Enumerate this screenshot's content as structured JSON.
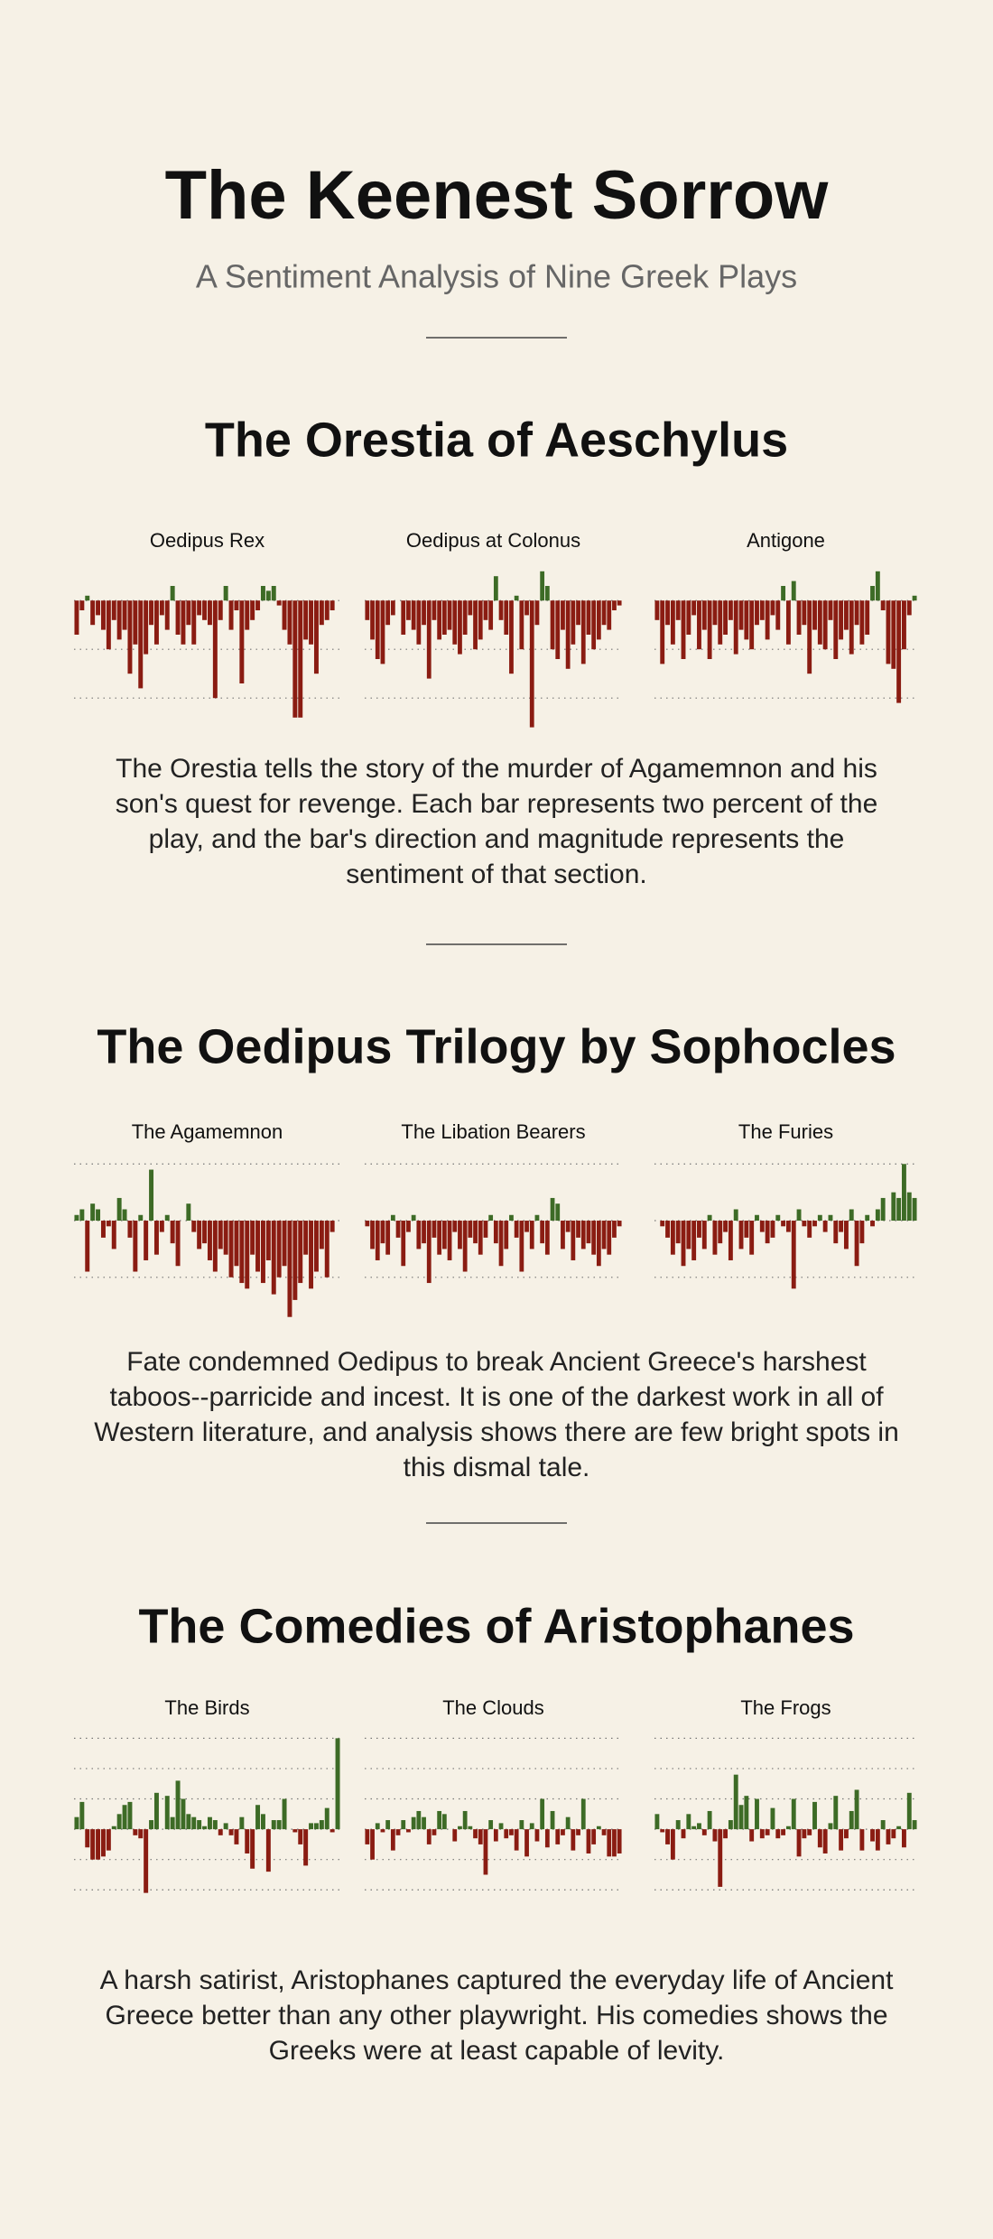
{
  "header": {
    "title": "The Keenest Sorrow",
    "subtitle": "A Sentiment Analysis of Nine Greek Plays"
  },
  "sections": [
    {
      "heading": "The Orestia of Aeschylus",
      "description": "The Orestia tells the story of the murder of Agamemnon and his son's quest for revenge. Each bar represents two percent of the play, and the bar's direction and magnitude represents the sentiment of that section."
    },
    {
      "heading": "The Oedipus Trilogy by Sophocles",
      "description": "Fate condemned Oedipus to break Ancient Greece's harshest taboos--parricide and incest. It is one of the darkest work in all of Western literature, and analysis shows there are few bright spots in this dismal tale."
    },
    {
      "heading": "The Comedies of Aristophanes",
      "description": "A harsh satirist, Aristophanes captured the everyday life of Ancient Greece better than any other playwright. His comedies shows the Greeks were at least capable of levity."
    }
  ],
  "chart_data": [
    {
      "type": "bar",
      "title": "Oedipus Rex",
      "ylim": [
        -2.7,
        0.8
      ],
      "yticks": [
        -2,
        -1,
        0
      ],
      "grid": true,
      "colors": {
        "positive": "#3d6b26",
        "negative": "#8a1c12"
      },
      "values": [
        -0.7,
        -0.2,
        0.1,
        -0.5,
        -0.3,
        -0.6,
        -1.0,
        -0.4,
        -0.8,
        -0.6,
        -1.5,
        -0.9,
        -1.8,
        -1.1,
        -0.5,
        -0.9,
        -0.3,
        -0.6,
        0.3,
        -0.7,
        -0.9,
        -0.5,
        -0.9,
        -0.3,
        -0.4,
        -0.5,
        -2.0,
        -0.4,
        0.3,
        -0.6,
        -0.2,
        -1.7,
        -0.6,
        -0.4,
        -0.2,
        0.3,
        0.2,
        0.3,
        -0.1,
        -0.6,
        -0.9,
        -2.4,
        -2.4,
        -0.8,
        -0.9,
        -1.5,
        -0.5,
        -0.4,
        -0.2,
        0
      ]
    },
    {
      "type": "bar",
      "title": "Oedipus at Colonus",
      "ylim": [
        -2.7,
        0.8
      ],
      "yticks": [
        -2,
        -1,
        0
      ],
      "grid": true,
      "colors": {
        "positive": "#3d6b26",
        "negative": "#8a1c12"
      },
      "values": [
        -0.4,
        -0.8,
        -1.2,
        -1.3,
        -0.5,
        -0.3,
        0,
        -0.7,
        -0.4,
        -0.6,
        -0.9,
        -0.5,
        -1.6,
        -0.4,
        -0.8,
        -0.7,
        -0.6,
        -0.9,
        -1.1,
        -0.7,
        -0.3,
        -1.0,
        -0.8,
        -0.4,
        -0.6,
        0.5,
        -0.4,
        -0.7,
        -1.5,
        0.1,
        -1.0,
        -0.3,
        -2.6,
        -0.5,
        0.6,
        0.3,
        -1.0,
        -1.2,
        -0.6,
        -1.4,
        -0.9,
        -0.5,
        -1.3,
        -0.7,
        -1.0,
        -0.8,
        -0.5,
        -0.6,
        -0.2,
        -0.1
      ]
    },
    {
      "type": "bar",
      "title": "Antigone",
      "ylim": [
        -2.7,
        0.8
      ],
      "yticks": [
        -2,
        -1,
        0
      ],
      "grid": true,
      "colors": {
        "positive": "#3d6b26",
        "negative": "#8a1c12"
      },
      "values": [
        -0.4,
        -1.3,
        -0.5,
        -0.9,
        -0.4,
        -1.2,
        -0.7,
        -0.3,
        -1.0,
        -0.6,
        -1.2,
        -0.5,
        -0.9,
        -0.7,
        -0.4,
        -1.1,
        -0.6,
        -0.8,
        -1.0,
        -0.5,
        -0.4,
        -0.8,
        -0.3,
        -0.6,
        0.3,
        -0.9,
        0.4,
        -0.7,
        -0.5,
        -1.5,
        -0.6,
        -0.9,
        -1.0,
        -0.4,
        -1.2,
        -0.8,
        -0.6,
        -1.1,
        -0.5,
        -0.9,
        -0.7,
        0.3,
        0.6,
        -0.2,
        -1.3,
        -1.4,
        -2.1,
        -1.0,
        -0.3,
        0.1
      ]
    },
    {
      "type": "bar",
      "title": "The Agamemnon",
      "ylim": [
        -1.8,
        1.1
      ],
      "yticks": [
        -1,
        0,
        1
      ],
      "grid": true,
      "colors": {
        "positive": "#3d6b26",
        "negative": "#8a1c12"
      },
      "values": [
        0.1,
        0.2,
        -0.9,
        0.3,
        0.2,
        -0.3,
        -0.1,
        -0.5,
        0.4,
        0.2,
        -0.3,
        -0.9,
        0.1,
        -0.7,
        0.9,
        -0.6,
        -0.2,
        0.1,
        -0.4,
        -0.8,
        0,
        0.3,
        -0.2,
        -0.5,
        -0.4,
        -0.7,
        -0.9,
        -0.5,
        -0.6,
        -1.0,
        -0.8,
        -1.1,
        -1.2,
        -0.6,
        -0.9,
        -1.1,
        -0.7,
        -1.3,
        -1.0,
        -0.8,
        -1.7,
        -1.4,
        -1.1,
        -0.6,
        -1.2,
        -0.9,
        -0.5,
        -1.0,
        -0.2,
        0
      ]
    },
    {
      "type": "bar",
      "title": "The Libation Bearers",
      "ylim": [
        -1.8,
        1.1
      ],
      "yticks": [
        -1,
        0,
        1
      ],
      "grid": true,
      "colors": {
        "positive": "#3d6b26",
        "negative": "#8a1c12"
      },
      "values": [
        -0.1,
        -0.5,
        -0.7,
        -0.4,
        -0.6,
        0.1,
        -0.3,
        -0.8,
        -0.2,
        0.1,
        -0.5,
        -0.4,
        -1.1,
        -0.3,
        -0.6,
        -0.5,
        -0.7,
        -0.2,
        -0.5,
        -0.9,
        -0.3,
        -0.4,
        -0.6,
        -0.3,
        0.1,
        -0.4,
        -0.8,
        -0.5,
        0.1,
        -0.3,
        -0.9,
        -0.2,
        -0.5,
        0.1,
        -0.4,
        -0.6,
        0.4,
        0.3,
        -0.5,
        -0.2,
        -0.7,
        -0.3,
        -0.5,
        -0.4,
        -0.6,
        -0.8,
        -0.5,
        -0.6,
        -0.3,
        -0.1
      ]
    },
    {
      "type": "bar",
      "title": "The Furies",
      "ylim": [
        -1.8,
        1.1
      ],
      "yticks": [
        -1,
        0,
        1
      ],
      "grid": true,
      "colors": {
        "positive": "#3d6b26",
        "negative": "#8a1c12"
      },
      "values": [
        0,
        -0.1,
        -0.3,
        -0.6,
        -0.4,
        -0.8,
        -0.5,
        -0.7,
        -0.3,
        -0.5,
        0.1,
        -0.6,
        -0.4,
        -0.2,
        -0.7,
        0.2,
        -0.5,
        -0.3,
        -0.6,
        0.1,
        -0.2,
        -0.4,
        -0.3,
        0.1,
        -0.1,
        -0.2,
        -1.2,
        0.2,
        -0.1,
        -0.3,
        -0.1,
        0.1,
        -0.2,
        0.1,
        -0.4,
        -0.2,
        -0.5,
        0.2,
        -0.8,
        -0.4,
        0.1,
        -0.1,
        0.2,
        0.4,
        0,
        0.5,
        0.4,
        1.0,
        0.5,
        0.4
      ]
    },
    {
      "type": "bar",
      "title": "The Birds",
      "ylim": [
        -2.2,
        3.1
      ],
      "yticks": [
        -2,
        -1,
        0,
        1,
        2,
        3
      ],
      "grid": true,
      "colors": {
        "positive": "#3d6b26",
        "negative": "#8a1c12"
      },
      "values": [
        0.4,
        0.9,
        -0.6,
        -1.0,
        -1.0,
        -0.9,
        -0.7,
        0.1,
        0.5,
        0.8,
        0.9,
        -0.2,
        -0.3,
        -2.1,
        0.3,
        1.2,
        0,
        1.1,
        0.4,
        1.6,
        1.0,
        0.5,
        0.4,
        0.3,
        0.1,
        0.4,
        0.3,
        -0.2,
        0.2,
        -0.2,
        -0.5,
        0.4,
        -0.8,
        -1.3,
        0.8,
        0.5,
        -1.4,
        0.3,
        0.3,
        1.0,
        0,
        -0.1,
        -0.5,
        -1.2,
        0.2,
        0.2,
        0.3,
        0.7,
        -0.1,
        3.0
      ]
    },
    {
      "type": "bar",
      "title": "The Clouds",
      "ylim": [
        -2.2,
        3.1
      ],
      "yticks": [
        -2,
        -1,
        0,
        1,
        2,
        3
      ],
      "grid": true,
      "colors": {
        "positive": "#3d6b26",
        "negative": "#8a1c12"
      },
      "values": [
        -0.5,
        -1.0,
        0.2,
        -0.1,
        0.3,
        -0.7,
        -0.2,
        0.3,
        -0.1,
        0.4,
        0.6,
        0.4,
        -0.5,
        -0.2,
        0.6,
        0.5,
        0,
        -0.4,
        0.1,
        0.6,
        0.1,
        -0.3,
        -0.5,
        -1.5,
        0.3,
        -0.4,
        0.2,
        -0.3,
        -0.2,
        -0.7,
        0.3,
        -0.9,
        0.2,
        -0.4,
        1.0,
        -0.6,
        0.6,
        -0.5,
        -0.2,
        0.4,
        -0.7,
        -0.2,
        1.0,
        -0.8,
        -0.5,
        0.1,
        -0.2,
        -0.9,
        -0.9,
        -0.8
      ]
    },
    {
      "type": "bar",
      "title": "The Frogs",
      "ylim": [
        -2.2,
        3.1
      ],
      "yticks": [
        -2,
        -1,
        0,
        1,
        2,
        3
      ],
      "grid": true,
      "colors": {
        "positive": "#3d6b26",
        "negative": "#8a1c12"
      },
      "values": [
        0.5,
        -0.1,
        -0.5,
        -1.0,
        0.3,
        -0.3,
        0.5,
        0.1,
        0.2,
        -0.2,
        0.6,
        -0.4,
        -1.9,
        -0.3,
        0.3,
        1.8,
        0.8,
        1.1,
        -0.4,
        1.0,
        -0.3,
        -0.2,
        0.7,
        -0.3,
        -0.2,
        0.1,
        1.0,
        -0.9,
        -0.3,
        -0.2,
        0.9,
        -0.6,
        -0.8,
        0.2,
        1.1,
        -0.7,
        -0.3,
        0.6,
        1.3,
        -0.7,
        0,
        -0.4,
        -0.7,
        0.3,
        -0.5,
        -0.3,
        0.1,
        -0.6,
        1.2,
        0.3
      ]
    }
  ]
}
